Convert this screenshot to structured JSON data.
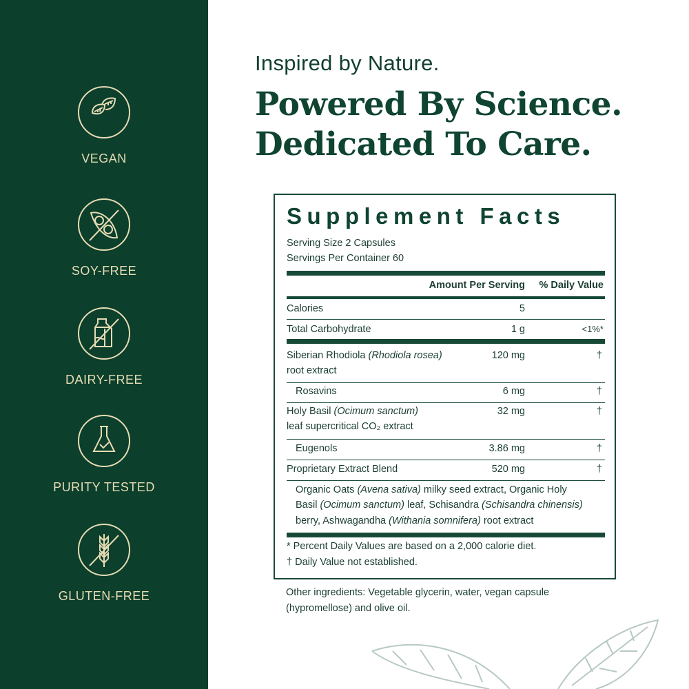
{
  "badges": [
    {
      "label": "VEGAN",
      "icon": "leaf-icon"
    },
    {
      "label": "SOY-FREE",
      "icon": "soy-free-icon"
    },
    {
      "label": "DAIRY-FREE",
      "icon": "dairy-free-icon"
    },
    {
      "label": "PURITY TESTED",
      "icon": "flask-check-icon"
    },
    {
      "label": "GLUTEN-FREE",
      "icon": "gluten-free-icon"
    }
  ],
  "headline": {
    "tagline": "Inspired by Nature.",
    "line1": "Powered By Science.",
    "line2": "Dedicated To Care."
  },
  "facts": {
    "title": "Supplement Facts",
    "serving_size": "Serving Size 2 Capsules",
    "servings_per_container": "Servings Per Container 60",
    "col_amount": "Amount Per Serving",
    "col_dv": "% Daily Value",
    "rows": [
      {
        "name": "Calories",
        "amount": "5",
        "dv": ""
      },
      {
        "name": "Total Carbohydrate",
        "amount": "1 g",
        "dv": "<1%*"
      },
      {
        "name": "Siberian Rhodiola",
        "latin": "(Rhodiola rosea)",
        "name2": "root extract",
        "amount": "120 mg",
        "dv": "†"
      },
      {
        "name": "Rosavins",
        "amount": "6 mg",
        "dv": "†"
      },
      {
        "name": "Holy Basil",
        "latin": "(Ocimum sanctum)",
        "name2": "leaf supercritical CO₂ extract",
        "amount": "32 mg",
        "dv": "†"
      },
      {
        "name": "Eugenols",
        "amount": "3.86 mg",
        "dv": "†"
      },
      {
        "name": "Proprietary Extract Blend",
        "amount": "520 mg",
        "dv": "†"
      }
    ],
    "blend": [
      "Organic Oats ",
      "(Avena sativa)",
      " milky seed extract, Organic Holy",
      "Basil ",
      "(Ocimum sanctum)",
      " leaf, Schisandra ",
      "(Schisandra chinensis)",
      "berry, Ashwagandha ",
      "(Withania somnifera)",
      " root extract"
    ],
    "footnote1": "* Percent Daily Values are based on a 2,000 calorie diet.",
    "footnote2": "† Daily Value not established."
  },
  "other_ingredients": "Other ingredients: Vegetable glycerin, water, vegan capsule (hypromellose) and olive oil.",
  "colors": {
    "sidebar": "#0c3f2c",
    "cream": "#e6dcb4",
    "text": "#0f4430"
  }
}
